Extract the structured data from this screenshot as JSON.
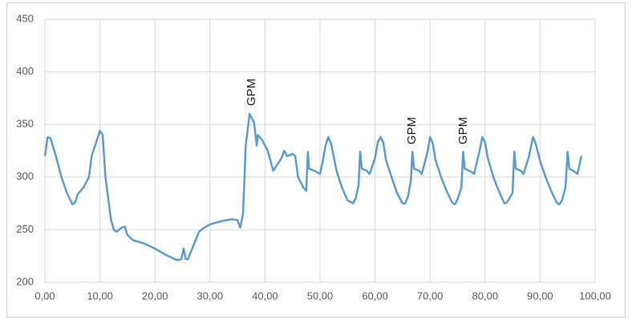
{
  "chart_data": {
    "type": "line",
    "annotations": [
      "GPM",
      "GPM",
      "GPM"
    ],
    "x": [
      0,
      0.5,
      1,
      2,
      3,
      4,
      5,
      5.5,
      6,
      7,
      8,
      8.5,
      9,
      10,
      10.5,
      11,
      12,
      12.5,
      13,
      14,
      14.5,
      15,
      16,
      18,
      20,
      22,
      24,
      24.8,
      25.2,
      25.6,
      26,
      27,
      28,
      29,
      30,
      32,
      34,
      35,
      35.5,
      36,
      36.5,
      37.2,
      38,
      38.5,
      38.7,
      39.5,
      40.5,
      41.5,
      43,
      43.5,
      44,
      45,
      45.5,
      46,
      47,
      47.5,
      47.8,
      48,
      49,
      50,
      50.5,
      51,
      51.5,
      52,
      53,
      54,
      55,
      56,
      56.5,
      57,
      57.3,
      57.6,
      58.5,
      59,
      60,
      60.5,
      61,
      61.5,
      62,
      63,
      64,
      65,
      65.5,
      66,
      66.5,
      66.8,
      67.1,
      68,
      68.5,
      69.5,
      70,
      70.5,
      71,
      72,
      73,
      74,
      74.5,
      75,
      75.7,
      76,
      76.3,
      77.5,
      78,
      79,
      79.5,
      80,
      80.5,
      81.5,
      82.5,
      83.5,
      84,
      85,
      85.3,
      85.6,
      86.5,
      87,
      88,
      88.7,
      89.2,
      90,
      91,
      92,
      93,
      93.5,
      94,
      94.6,
      95,
      95.3,
      96,
      96.8,
      97.5
    ],
    "series": [
      {
        "color": "#5b9bd5",
        "values": [
          320,
          338,
          337,
          320,
          300,
          285,
          274,
          276,
          284,
          290,
          300,
          320,
          328,
          344,
          340,
          300,
          260,
          250,
          248,
          252,
          253,
          245,
          240,
          237,
          232,
          226,
          221,
          222,
          232,
          222,
          222,
          235,
          248,
          252,
          255,
          258,
          260,
          259,
          252,
          265,
          330,
          360,
          352,
          330,
          340,
          335,
          325,
          306,
          318,
          325,
          320,
          322,
          320,
          300,
          290,
          287,
          324,
          308,
          306,
          303,
          315,
          330,
          338,
          332,
          306,
          290,
          278,
          275,
          280,
          292,
          324,
          308,
          306,
          303,
          318,
          333,
          338,
          333,
          316,
          300,
          285,
          275,
          275,
          282,
          296,
          324,
          308,
          306,
          303,
          323,
          338,
          332,
          316,
          300,
          287,
          276,
          274,
          279,
          290,
          324,
          308,
          305,
          303,
          325,
          338,
          333,
          318,
          300,
          287,
          275,
          276,
          285,
          324,
          308,
          306,
          303,
          320,
          338,
          332,
          315,
          300,
          287,
          276,
          274,
          278,
          290,
          324,
          308,
          306,
          303,
          320
        ]
      }
    ],
    "xlim": [
      0,
      100
    ],
    "xticks": [
      {
        "value": 0,
        "label": "0,00"
      },
      {
        "value": 10,
        "label": "10,00"
      },
      {
        "value": 20,
        "label": "20,00"
      },
      {
        "value": 30,
        "label": "30,00"
      },
      {
        "value": 40,
        "label": "40,00"
      },
      {
        "value": 50,
        "label": "50,00"
      },
      {
        "value": 60,
        "label": "60,00"
      },
      {
        "value": 70,
        "label": "70,00"
      },
      {
        "value": 80,
        "label": "80,00"
      },
      {
        "value": 90,
        "label": "90,00"
      },
      {
        "value": 100,
        "label": "100,00"
      }
    ],
    "ylim": [
      200,
      450
    ],
    "yticks": [
      200,
      250,
      300,
      350,
      400,
      450
    ],
    "grid": true
  }
}
